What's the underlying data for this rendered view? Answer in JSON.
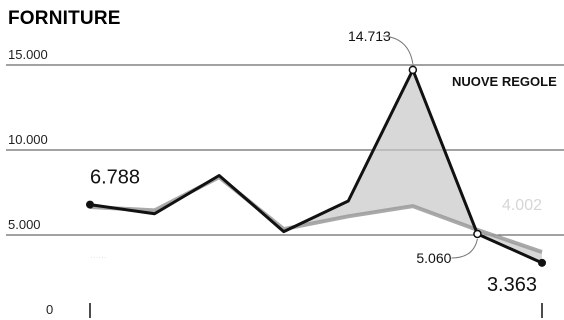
{
  "chart_data": {
    "type": "line",
    "title": "FORNITURE",
    "ylim": [
      0,
      15000
    ],
    "y_ticks": [
      "15.000",
      "10.000",
      "5.000",
      "0"
    ],
    "y_tick_values": [
      15000,
      10000,
      5000,
      0
    ],
    "x": [
      0,
      1,
      2,
      3,
      4,
      5,
      6,
      7
    ],
    "annotation_label": "NUOVE REGOLE",
    "series": [
      {
        "values": [
          6788,
          6250,
          8500,
          5200,
          7000,
          14713,
          5060,
          3363
        ]
      },
      {
        "values": [
          6650,
          6450,
          8400,
          5350,
          6100,
          6700,
          5300,
          4002
        ]
      }
    ],
    "data_labels": [
      {
        "text": "6.788",
        "series": 0,
        "index": 0
      },
      {
        "text": "14.713",
        "series": 0,
        "index": 5
      },
      {
        "text": "5.060",
        "series": 0,
        "index": 6
      },
      {
        "text": "3.363",
        "series": 0,
        "index": 7
      },
      {
        "text": "4.002",
        "series": 1,
        "index": 7
      }
    ],
    "faint_label": "......",
    "colors": {
      "main_line": "#111111",
      "secondary_line": "#9a9a9a",
      "fill": "#c8c8c8",
      "grid": "#444444"
    }
  }
}
